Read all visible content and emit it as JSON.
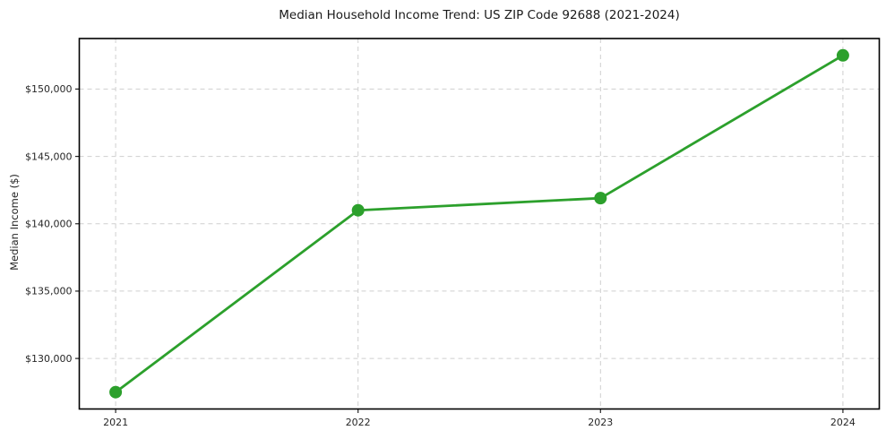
{
  "chart_data": {
    "type": "line",
    "title": "Median Household Income Trend: US ZIP Code 92688 (2021-2024)",
    "xlabel": "",
    "ylabel": "Median Income ($)",
    "categories": [
      "2021",
      "2022",
      "2023",
      "2024"
    ],
    "x": [
      2021,
      2022,
      2023,
      2024
    ],
    "series": [
      {
        "name": "Median Household Income",
        "values": [
          127500,
          141000,
          141900,
          152500
        ],
        "color": "#2ca02c",
        "marker": "circle",
        "marker_radius": 7,
        "line_width": 2.8
      }
    ],
    "y_ticks": [
      {
        "value": 130000,
        "label": "$130,000"
      },
      {
        "value": 135000,
        "label": "$135,000"
      },
      {
        "value": 140000,
        "label": "$140,000"
      },
      {
        "value": 145000,
        "label": "$145,000"
      },
      {
        "value": 150000,
        "label": "$150,000"
      }
    ],
    "xlim": [
      2020.85,
      2024.15
    ],
    "ylim": [
      126250,
      153750
    ],
    "grid": "both",
    "grid_style": "dashed",
    "grid_color": "#cfcfcf",
    "spine_color": "#000000",
    "tick_color": "#262626",
    "background_color": "#ffffff",
    "legend": "none"
  }
}
